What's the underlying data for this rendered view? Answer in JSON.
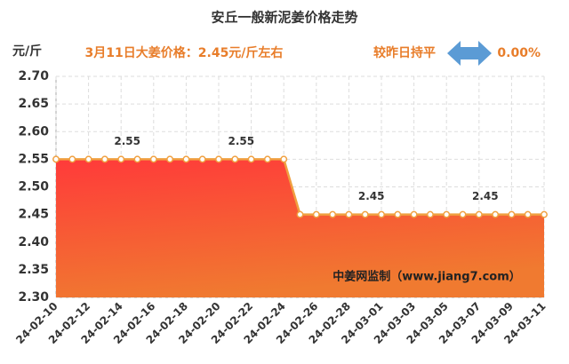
{
  "chart_data": {
    "type": "area",
    "title": "安丘一般新泥姜价格走势",
    "y_unit": "元/斤",
    "headline": "3月11日大姜价格：2.45元/斤左右",
    "change_text": "较昨日持平",
    "change_value": "0.00%",
    "watermark": "中姜网监制（www.jiang7.com）",
    "categories": [
      "24-02-10",
      null,
      "24-02-12",
      null,
      "24-02-14",
      null,
      "24-02-16",
      null,
      "24-02-18",
      null,
      "24-02-20",
      null,
      "24-02-22",
      null,
      "24-02-24",
      null,
      "24-02-26",
      null,
      "24-02-28",
      null,
      "24-03-01",
      null,
      "24-03-03",
      null,
      "24-03-05",
      null,
      "24-03-07",
      null,
      "24-03-09",
      null,
      "24-03-11"
    ],
    "values": [
      2.55,
      2.55,
      2.55,
      2.55,
      2.55,
      2.55,
      2.55,
      2.55,
      2.55,
      2.55,
      2.55,
      2.55,
      2.55,
      2.55,
      2.55,
      2.45,
      2.45,
      2.45,
      2.45,
      2.45,
      2.45,
      2.45,
      2.45,
      2.45,
      2.45,
      2.45,
      2.45,
      2.45,
      2.45,
      2.45,
      2.45
    ],
    "value_labels": [
      null,
      null,
      null,
      null,
      "2.55",
      null,
      null,
      null,
      null,
      null,
      null,
      "2.55",
      null,
      null,
      null,
      null,
      null,
      null,
      null,
      "2.45",
      null,
      null,
      null,
      null,
      null,
      null,
      "2.45",
      null,
      null,
      null,
      null
    ],
    "color": "#f0a040",
    "fill_top": "#ff3a3a",
    "fill_bottom": "#f07a30",
    "ylim": [
      2.3,
      2.7
    ],
    "yticks": [
      {
        "value": 2.3,
        "label": "2.30"
      },
      2.35,
      {
        "value": 2.4,
        "label": "2.40"
      },
      2.45,
      {
        "value": 2.5,
        "label": "2.50"
      },
      2.55,
      {
        "value": 2.6,
        "label": "2.60"
      },
      2.65,
      {
        "value": 2.7,
        "label": "2.70"
      }
    ],
    "grid": true
  }
}
